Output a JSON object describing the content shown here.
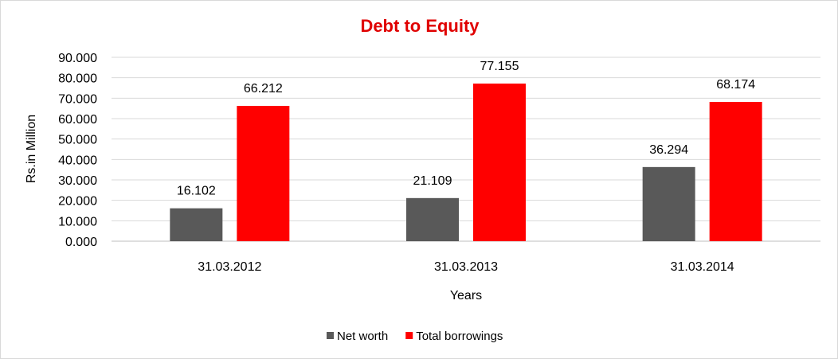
{
  "chart_data": {
    "type": "bar",
    "title": "Debt to Equity",
    "xlabel": "Years",
    "ylabel": "Rs.in Million",
    "categories": [
      "31.03.2012",
      "31.03.2013",
      "31.03.2014"
    ],
    "series": [
      {
        "name": "Net worth",
        "values": [
          16.102,
          21.109,
          36.294
        ],
        "color": "#595959"
      },
      {
        "name": "Total borrowings",
        "values": [
          66.212,
          77.155,
          68.174
        ],
        "color": "#ff0000"
      }
    ],
    "data_labels": [
      [
        "16.102",
        "21.109",
        "36.294"
      ],
      [
        "66.212",
        "77.155",
        "68.174"
      ]
    ],
    "ylim": [
      0,
      90
    ],
    "yticks": [
      "0.000",
      "10.000",
      "20.000",
      "30.000",
      "40.000",
      "50.000",
      "60.000",
      "70.000",
      "80.000",
      "90.000"
    ],
    "grid": true,
    "legend": "bottom",
    "title_color": "#e00000"
  }
}
